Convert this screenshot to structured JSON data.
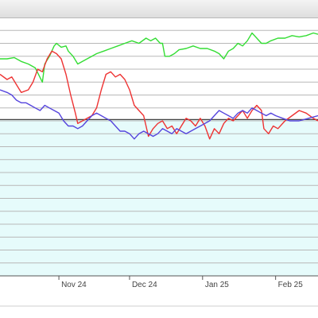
{
  "chart_data": {
    "type": "line",
    "title": "",
    "xlabel": "",
    "ylabel": "",
    "x_ticks": [
      {
        "label": "Nov 24",
        "x": 8
      },
      {
        "label": "Dec 24",
        "x": 38
      },
      {
        "label": "Jan 25",
        "x": 69
      },
      {
        "label": "Feb 25",
        "x": 100
      }
    ],
    "xlim": [
      -17,
      118
    ],
    "ylim": [
      0,
      100
    ],
    "reference_line": 60.5,
    "background_color": "#e6fbfb",
    "grid": true,
    "legend": "none",
    "series": [
      {
        "color": "#33dd33",
        "points": [
          [
            -17,
            84
          ],
          [
            -14,
            84
          ],
          [
            -11,
            84.5
          ],
          [
            -8,
            83
          ],
          [
            -5,
            82
          ],
          [
            -2,
            80.5
          ],
          [
            1,
            75
          ],
          [
            2,
            82
          ],
          [
            4,
            85
          ],
          [
            6,
            89
          ],
          [
            7,
            90
          ],
          [
            9,
            88.5
          ],
          [
            11,
            89
          ],
          [
            12,
            87
          ],
          [
            14,
            85
          ],
          [
            16,
            82
          ],
          [
            18,
            83
          ],
          [
            20,
            84
          ],
          [
            22,
            85
          ],
          [
            24,
            86
          ],
          [
            27,
            87
          ],
          [
            30,
            88
          ],
          [
            33,
            89
          ],
          [
            36,
            90
          ],
          [
            39,
            91
          ],
          [
            42,
            90
          ],
          [
            45,
            92
          ],
          [
            47,
            91
          ],
          [
            49,
            92
          ],
          [
            51,
            90
          ],
          [
            52,
            90
          ],
          [
            53,
            85
          ],
          [
            55,
            85
          ],
          [
            57,
            86
          ],
          [
            59,
            87.5
          ],
          [
            62,
            88
          ],
          [
            65,
            89
          ],
          [
            68,
            88
          ],
          [
            71,
            88
          ],
          [
            74,
            87
          ],
          [
            76,
            86
          ],
          [
            78,
            84
          ],
          [
            80,
            87
          ],
          [
            82,
            88
          ],
          [
            84,
            90
          ],
          [
            86,
            89
          ],
          [
            88,
            91
          ],
          [
            90,
            94
          ],
          [
            92,
            92
          ],
          [
            94,
            90
          ],
          [
            96,
            90
          ],
          [
            98,
            91
          ],
          [
            101,
            92
          ],
          [
            104,
            92
          ],
          [
            107,
            93
          ],
          [
            110,
            92.5
          ],
          [
            113,
            93
          ],
          [
            116,
            94
          ],
          [
            118,
            93.5
          ]
        ]
      },
      {
        "color": "#ee3333",
        "points": [
          [
            -17,
            78
          ],
          [
            -14,
            76
          ],
          [
            -12,
            77
          ],
          [
            -10,
            74
          ],
          [
            -8,
            71
          ],
          [
            -5,
            72
          ],
          [
            -3,
            75
          ],
          [
            -1,
            80
          ],
          [
            1,
            79
          ],
          [
            3,
            84
          ],
          [
            5,
            87
          ],
          [
            7,
            86
          ],
          [
            9,
            84
          ],
          [
            11,
            78
          ],
          [
            13,
            70
          ],
          [
            15,
            63
          ],
          [
            16,
            59
          ],
          [
            18,
            60
          ],
          [
            20,
            61
          ],
          [
            22,
            62
          ],
          [
            24,
            65
          ],
          [
            26,
            72
          ],
          [
            28,
            78
          ],
          [
            30,
            79
          ],
          [
            32,
            77
          ],
          [
            34,
            78
          ],
          [
            36,
            76
          ],
          [
            38,
            72
          ],
          [
            40,
            66
          ],
          [
            42,
            64
          ],
          [
            44,
            62
          ],
          [
            46,
            54
          ],
          [
            48,
            57
          ],
          [
            50,
            59
          ],
          [
            52,
            60
          ],
          [
            54,
            57
          ],
          [
            56,
            58
          ],
          [
            58,
            55
          ],
          [
            60,
            58
          ],
          [
            62,
            61
          ],
          [
            64,
            60
          ],
          [
            66,
            58
          ],
          [
            68,
            61
          ],
          [
            70,
            58
          ],
          [
            72,
            53
          ],
          [
            74,
            57
          ],
          [
            76,
            55
          ],
          [
            78,
            59
          ],
          [
            80,
            61
          ],
          [
            82,
            60
          ],
          [
            84,
            62
          ],
          [
            86,
            64
          ],
          [
            88,
            61
          ],
          [
            90,
            64
          ],
          [
            92,
            66
          ],
          [
            94,
            64
          ],
          [
            95,
            57
          ],
          [
            97,
            55
          ],
          [
            99,
            58
          ],
          [
            101,
            57
          ],
          [
            104,
            60
          ],
          [
            107,
            62
          ],
          [
            110,
            64
          ],
          [
            113,
            63
          ],
          [
            116,
            61
          ],
          [
            118,
            60
          ]
        ]
      },
      {
        "color": "#5544dd",
        "points": [
          [
            -17,
            72
          ],
          [
            -14,
            71
          ],
          [
            -12,
            70
          ],
          [
            -10,
            68
          ],
          [
            -8,
            67
          ],
          [
            -6,
            67
          ],
          [
            -4,
            66
          ],
          [
            -2,
            65
          ],
          [
            0,
            64
          ],
          [
            2,
            66
          ],
          [
            4,
            65
          ],
          [
            6,
            64
          ],
          [
            8,
            63
          ],
          [
            10,
            60
          ],
          [
            12,
            58
          ],
          [
            14,
            58
          ],
          [
            16,
            57
          ],
          [
            18,
            58
          ],
          [
            20,
            60
          ],
          [
            22,
            62
          ],
          [
            24,
            63
          ],
          [
            26,
            62
          ],
          [
            28,
            61
          ],
          [
            30,
            60
          ],
          [
            32,
            58
          ],
          [
            34,
            56
          ],
          [
            36,
            56
          ],
          [
            38,
            55
          ],
          [
            40,
            53
          ],
          [
            42,
            55
          ],
          [
            44,
            56
          ],
          [
            46,
            55
          ],
          [
            48,
            54
          ],
          [
            50,
            55
          ],
          [
            52,
            57
          ],
          [
            54,
            56
          ],
          [
            56,
            55
          ],
          [
            58,
            57
          ],
          [
            60,
            56
          ],
          [
            62,
            55
          ],
          [
            64,
            56
          ],
          [
            66,
            57
          ],
          [
            68,
            58
          ],
          [
            70,
            59
          ],
          [
            72,
            60
          ],
          [
            74,
            62
          ],
          [
            76,
            64
          ],
          [
            78,
            63
          ],
          [
            80,
            62
          ],
          [
            82,
            61
          ],
          [
            84,
            63
          ],
          [
            86,
            64
          ],
          [
            88,
            63
          ],
          [
            90,
            65
          ],
          [
            92,
            64
          ],
          [
            94,
            63
          ],
          [
            96,
            62
          ],
          [
            98,
            63
          ],
          [
            100,
            62
          ],
          [
            103,
            61
          ],
          [
            106,
            60
          ],
          [
            110,
            60
          ],
          [
            114,
            61
          ],
          [
            118,
            62
          ]
        ]
      }
    ]
  }
}
